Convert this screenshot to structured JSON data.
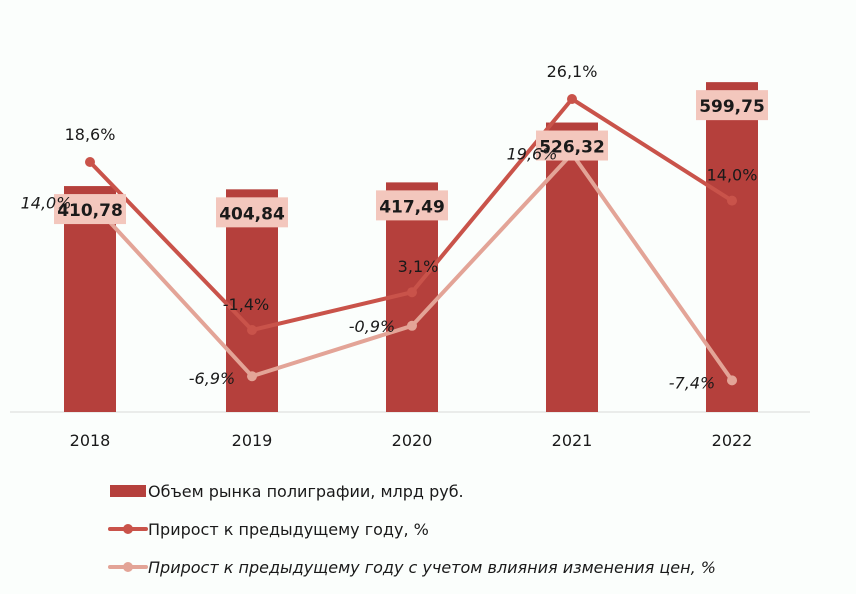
{
  "chart_data": {
    "type": "bar+line",
    "categories": [
      "2018",
      "2019",
      "2020",
      "2021",
      "2022"
    ],
    "series": [
      {
        "name": "Объем рынка полиграфии, млрд руб.",
        "type": "bar",
        "values": [
          410.78,
          404.84,
          417.49,
          526.32,
          599.75
        ],
        "labels": [
          "410,78",
          "404,84",
          "417,49",
          "526,32",
          "599,75"
        ],
        "color": "#b5403c"
      },
      {
        "name": "Прирост к предыдущему году, %",
        "type": "line",
        "values": [
          18.6,
          -1.4,
          3.1,
          26.1,
          14.0
        ],
        "labels": [
          "18,6%",
          "-1,4%",
          "3,1%",
          "26,1%",
          "14,0%"
        ],
        "color": "#c9534a"
      },
      {
        "name": "Прирост к предыдущему году с учетом влияния изменения цен, %",
        "type": "line",
        "italic": true,
        "values": [
          14.0,
          -6.9,
          -0.9,
          19.6,
          -7.4
        ],
        "labels": [
          "14,0%",
          "-6,9%",
          "-0,9%",
          "19,6%",
          "-7,4%"
        ],
        "color": "#e3a497"
      }
    ],
    "bar_label_bg": "#f3c7bd",
    "title": "",
    "xlabel": "",
    "ylabel": "",
    "grid": false,
    "legend_position": "bottom-left"
  }
}
